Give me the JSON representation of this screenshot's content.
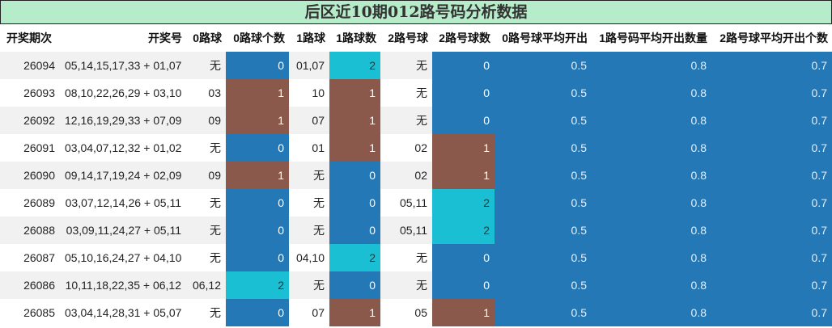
{
  "title": "后区近10期012路号码分析数据",
  "headers": [
    "开奖期次",
    "开奖号",
    "0路球",
    "0路球个数",
    "1路球",
    "1路球数",
    "2路号球",
    "2路号球数",
    "0路号球平均开出",
    "1路号码平均开出数量",
    "2路号球平均开出个数"
  ],
  "colors": {
    "count_0": "#2378b5",
    "count_1": "#8b594b",
    "count_2": "#1bbfd3",
    "title_bg": "#b6ecc9"
  },
  "rows": [
    {
      "issue": "26094",
      "draw": "05,14,15,17,33 + 01,07",
      "r0": "无",
      "c0": "0",
      "r1": "01,07",
      "c1": "2",
      "r2": "无",
      "c2": "0",
      "a0": "0.5",
      "a1": "0.8",
      "a2": "0.7"
    },
    {
      "issue": "26093",
      "draw": "08,10,22,26,29 + 03,10",
      "r0": "03",
      "c0": "1",
      "r1": "10",
      "c1": "1",
      "r2": "无",
      "c2": "0",
      "a0": "0.5",
      "a1": "0.8",
      "a2": "0.7"
    },
    {
      "issue": "26092",
      "draw": "12,16,19,29,33 + 07,09",
      "r0": "09",
      "c0": "1",
      "r1": "07",
      "c1": "1",
      "r2": "无",
      "c2": "0",
      "a0": "0.5",
      "a1": "0.8",
      "a2": "0.7"
    },
    {
      "issue": "26091",
      "draw": "03,04,07,12,32 + 01,02",
      "r0": "无",
      "c0": "0",
      "r1": "01",
      "c1": "1",
      "r2": "02",
      "c2": "1",
      "a0": "0.5",
      "a1": "0.8",
      "a2": "0.7"
    },
    {
      "issue": "26090",
      "draw": "09,14,17,19,24 + 02,09",
      "r0": "09",
      "c0": "1",
      "r1": "无",
      "c1": "0",
      "r2": "02",
      "c2": "1",
      "a0": "0.5",
      "a1": "0.8",
      "a2": "0.7"
    },
    {
      "issue": "26089",
      "draw": "03,07,12,14,26 + 05,11",
      "r0": "无",
      "c0": "0",
      "r1": "无",
      "c1": "0",
      "r2": "05,11",
      "c2": "2",
      "a0": "0.5",
      "a1": "0.8",
      "a2": "0.7"
    },
    {
      "issue": "26088",
      "draw": "03,09,11,24,27 + 05,11",
      "r0": "无",
      "c0": "0",
      "r1": "无",
      "c1": "0",
      "r2": "05,11",
      "c2": "2",
      "a0": "0.5",
      "a1": "0.8",
      "a2": "0.7"
    },
    {
      "issue": "26087",
      "draw": "05,10,16,24,27 + 04,10",
      "r0": "无",
      "c0": "0",
      "r1": "04,10",
      "c1": "2",
      "r2": "无",
      "c2": "0",
      "a0": "0.5",
      "a1": "0.8",
      "a2": "0.7"
    },
    {
      "issue": "26086",
      "draw": "10,11,18,22,35 + 06,12",
      "r0": "06,12",
      "c0": "2",
      "r1": "无",
      "c1": "0",
      "r2": "无",
      "c2": "0",
      "a0": "0.5",
      "a1": "0.8",
      "a2": "0.7"
    },
    {
      "issue": "26085",
      "draw": "03,04,14,28,31 + 05,07",
      "r0": "无",
      "c0": "0",
      "r1": "07",
      "c1": "1",
      "r2": "05",
      "c2": "1",
      "a0": "0.5",
      "a1": "0.8",
      "a2": "0.7"
    }
  ]
}
